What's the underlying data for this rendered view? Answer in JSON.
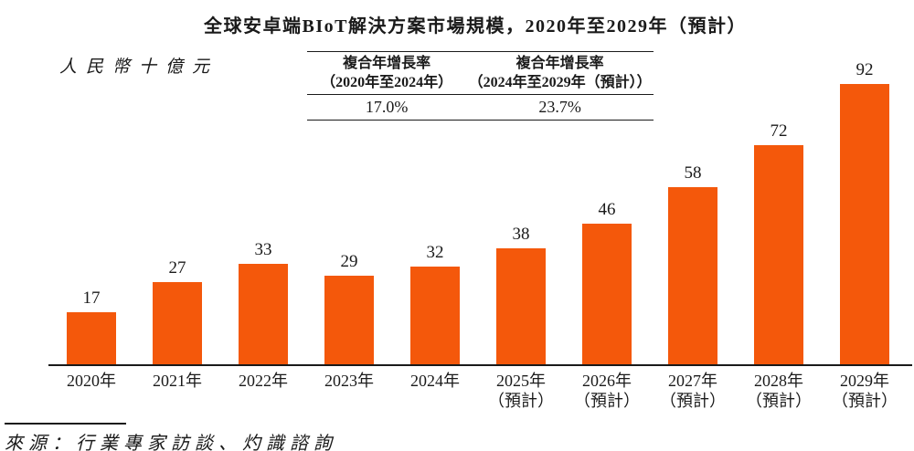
{
  "title": "全球安卓端BIoT解決方案市場規模，2020年至2029年（預計）",
  "unit_label": "人民幣十億元",
  "cagr_table": {
    "columns": [
      {
        "header_line1": "複合年增長率",
        "header_line2": "（2020年至2024年）",
        "value": "17.0%"
      },
      {
        "header_line1": "複合年增長率",
        "header_line2": "（2024年至2029年（預計））",
        "value": "23.7%"
      }
    ]
  },
  "source": "來源：行業專家訪談、灼識諮詢",
  "colors": {
    "bar": "#F4580B",
    "text": "#1A1A1A",
    "axis": "#1A1A1A"
  },
  "chart_data": {
    "type": "bar",
    "title": "全球安卓端BIoT解決方案市場規模，2020年至2029年（預計）",
    "ylabel": "人民幣十億元",
    "categories": [
      "2020年",
      "2021年",
      "2022年",
      "2023年",
      "2024年",
      "2025年\n（預計）",
      "2026年\n（預計）",
      "2027年\n（預計）",
      "2028年\n（預計）",
      "2029年\n（預計）"
    ],
    "values": [
      17,
      27,
      33,
      29,
      32,
      38,
      46,
      58,
      72,
      92
    ],
    "data_labels": [
      "17",
      "27",
      "33",
      "29",
      "32",
      "38",
      "46",
      "58",
      "72",
      "92"
    ],
    "ylim": [
      0,
      92
    ],
    "grid": false,
    "legend": "none",
    "annotations": [
      {
        "label": "複合年增長率（2020年至2024年）",
        "value": "17.0%"
      },
      {
        "label": "複合年增長率（2024年至2029年（預計））",
        "value": "23.7%"
      }
    ]
  }
}
